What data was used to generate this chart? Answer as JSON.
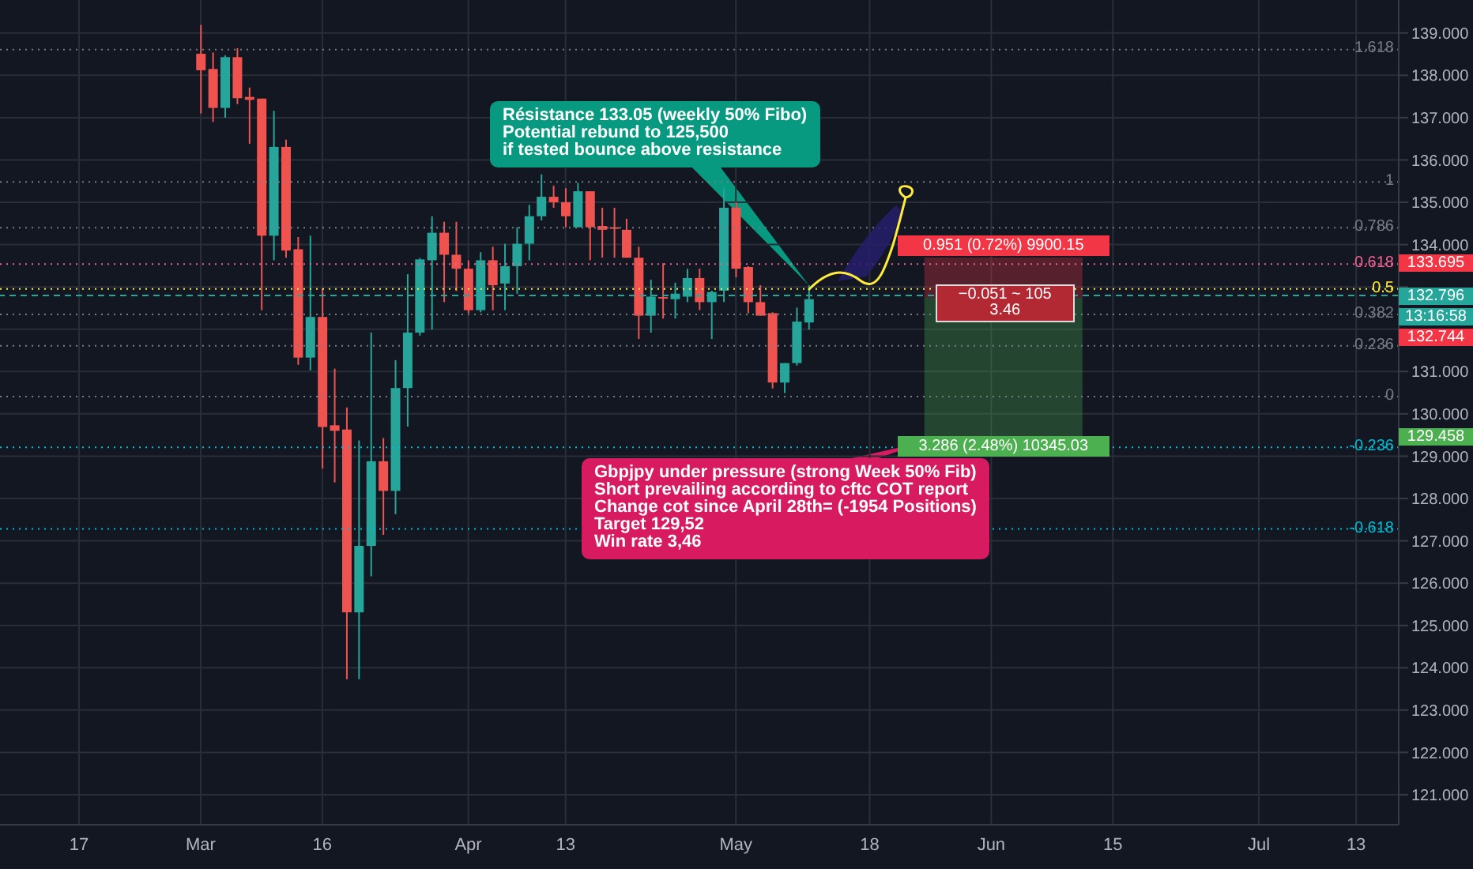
{
  "chart_data": {
    "type": "candlestick",
    "categories": [
      null,
      null,
      null,
      null,
      null,
      null,
      "17",
      null,
      null,
      null,
      null,
      null,
      null,
      null,
      null,
      null,
      "Mar",
      null,
      null,
      null,
      null,
      null,
      null,
      null,
      null,
      null,
      "16",
      null,
      null,
      null,
      null,
      null,
      null,
      null,
      null,
      null,
      null,
      null,
      "Apr",
      null,
      null,
      null,
      null,
      null,
      null,
      null,
      "13",
      null,
      null,
      null,
      null,
      null,
      null,
      null,
      null,
      null,
      null,
      null,
      null,
      null,
      "May",
      null,
      null,
      null,
      null,
      null,
      null,
      null,
      null,
      null,
      null,
      "18",
      null,
      null,
      null,
      null,
      null,
      null,
      null,
      null,
      null,
      "Jun",
      null,
      null,
      null,
      null,
      null,
      null,
      null,
      null,
      null,
      "15",
      null,
      null,
      null,
      null,
      null,
      null,
      null,
      null,
      null,
      null,
      null,
      "Jul",
      null,
      null,
      null,
      null,
      null,
      null,
      null,
      "13",
      null,
      null,
      null
    ],
    "ohlc": [
      null,
      null,
      null,
      null,
      null,
      null,
      null,
      null,
      null,
      null,
      null,
      null,
      null,
      null,
      null,
      null,
      [
        138.51,
        139.19,
        137.1,
        138.12
      ],
      [
        138.15,
        138.54,
        136.9,
        137.23
      ],
      [
        137.23,
        138.47,
        137.0,
        138.43
      ],
      [
        138.43,
        138.64,
        137.32,
        137.46
      ],
      [
        137.49,
        137.71,
        136.38,
        137.42
      ],
      [
        137.45,
        137.45,
        132.45,
        134.21
      ],
      [
        134.21,
        137.16,
        133.63,
        136.31
      ],
      [
        136.31,
        136.48,
        133.69,
        133.86
      ],
      [
        133.89,
        134.18,
        131.16,
        131.33
      ],
      [
        131.33,
        134.21,
        131.03,
        132.29
      ],
      [
        132.29,
        132.97,
        128.71,
        129.69
      ],
      [
        129.73,
        131.07,
        128.38,
        129.6
      ],
      [
        129.63,
        130.15,
        123.73,
        125.31
      ],
      [
        125.31,
        129.37,
        123.73,
        126.88
      ],
      [
        126.88,
        131.92,
        126.16,
        128.88
      ],
      [
        128.88,
        129.43,
        127.14,
        128.18
      ],
      [
        128.18,
        131.27,
        127.63,
        130.61
      ],
      [
        130.61,
        133.3,
        129.7,
        131.92
      ],
      [
        131.92,
        133.68,
        131.85,
        133.65
      ],
      [
        133.63,
        134.67,
        131.99,
        134.28
      ],
      [
        134.28,
        134.54,
        132.64,
        133.76
      ],
      [
        133.76,
        134.54,
        132.9,
        133.43
      ],
      [
        133.43,
        133.63,
        132.38,
        132.45
      ],
      [
        132.45,
        133.82,
        132.4,
        133.63
      ],
      [
        133.63,
        133.95,
        132.45,
        133.04
      ],
      [
        133.08,
        134.02,
        132.45,
        133.49
      ],
      [
        133.49,
        134.41,
        132.84,
        134.02
      ],
      [
        134.02,
        134.94,
        133.63,
        134.67
      ],
      [
        134.67,
        135.66,
        134.57,
        135.13
      ],
      [
        135.13,
        135.39,
        134.87,
        135.0
      ],
      [
        135.0,
        135.33,
        134.41,
        134.67
      ],
      [
        134.41,
        135.46,
        134.41,
        135.26
      ],
      [
        135.26,
        135.26,
        133.63,
        134.41
      ],
      [
        134.44,
        134.87,
        133.69,
        134.35
      ],
      [
        134.41,
        134.87,
        133.69,
        134.4
      ],
      [
        134.35,
        134.61,
        133.69,
        133.69
      ],
      [
        133.69,
        133.95,
        131.77,
        132.32
      ],
      [
        132.32,
        133.17,
        131.92,
        132.77
      ],
      [
        132.76,
        133.56,
        132.25,
        132.73
      ],
      [
        132.71,
        133.1,
        132.25,
        132.84
      ],
      [
        132.77,
        133.43,
        132.64,
        133.21
      ],
      [
        133.21,
        133.43,
        132.45,
        132.64
      ],
      [
        132.64,
        132.91,
        131.77,
        132.88
      ],
      [
        132.91,
        135.33,
        132.64,
        134.87
      ],
      [
        134.87,
        135.0,
        133.23,
        133.43
      ],
      [
        133.47,
        133.49,
        132.38,
        132.64
      ],
      [
        132.64,
        133.04,
        132.32,
        132.32
      ],
      [
        132.38,
        132.4,
        130.6,
        130.74
      ],
      [
        130.74,
        131.2,
        130.49,
        131.2
      ],
      [
        131.2,
        132.51,
        131.14,
        132.18
      ],
      [
        132.16,
        133.04,
        131.99,
        132.71
      ],
      null,
      null,
      null,
      null,
      null,
      null,
      null,
      null,
      null,
      null,
      null,
      null,
      null,
      null,
      null,
      null,
      null,
      null,
      null,
      null,
      null,
      null,
      null,
      null,
      null,
      null,
      null,
      null,
      null,
      null,
      null,
      null,
      null,
      null,
      null,
      null,
      null,
      null,
      null,
      null,
      null,
      null,
      null,
      null,
      null,
      null,
      null,
      null
    ],
    "ylim": [
      120.29,
      139.78
    ],
    "yticks": [
      {
        "value": 121,
        "label": "121.000"
      },
      {
        "value": 122,
        "label": "122.000"
      },
      {
        "value": 123,
        "label": "123.000"
      },
      {
        "value": 124,
        "label": "124.000"
      },
      {
        "value": 125,
        "label": "125.000"
      },
      {
        "value": 126,
        "label": "126.000"
      },
      {
        "value": 127,
        "label": "127.000"
      },
      {
        "value": 128,
        "label": "128.000"
      },
      {
        "value": 129,
        "label": "129.000"
      },
      {
        "value": 130,
        "label": "130.000"
      },
      {
        "value": 131,
        "label": "131.000"
      },
      {
        "value": 132,
        "label": null
      },
      {
        "value": 133,
        "label": null
      },
      {
        "value": 134,
        "label": "134.000"
      },
      {
        "value": 135,
        "label": "135.000"
      },
      {
        "value": 136,
        "label": "136.000"
      },
      {
        "value": 137,
        "label": "137.000"
      },
      {
        "value": 138,
        "label": "138.000"
      },
      {
        "value": 139,
        "label": "139.000"
      }
    ],
    "grid": true,
    "ref_lines": [
      {
        "axis": "y",
        "value": 138.61,
        "color": "#787b86",
        "line_style": "dotted"
      },
      {
        "axis": "y",
        "value": 135.48,
        "color": "#787b86",
        "line_style": "dotted"
      },
      {
        "axis": "y",
        "value": 134.4,
        "color": "#787b86",
        "line_style": "dotted"
      },
      {
        "axis": "y",
        "value": 133.54,
        "color": "#f06292",
        "line_style": "dotted"
      },
      {
        "axis": "y",
        "value": 132.95,
        "color": "#ffeb3b",
        "line_style": "dotted"
      },
      {
        "axis": "y",
        "value": 132.35,
        "color": "#787b86",
        "line_style": "dotted"
      },
      {
        "axis": "y",
        "value": 131.61,
        "color": "#787b86",
        "line_style": "dotted"
      },
      {
        "axis": "y",
        "value": 130.41,
        "color": "#787b86",
        "line_style": "dotted"
      },
      {
        "axis": "y",
        "value": 129.21,
        "color": "#00bcd4",
        "line_style": "dotted"
      },
      {
        "axis": "y",
        "value": 127.28,
        "color": "#00bcd4",
        "line_style": "dotted"
      },
      {
        "axis": "y",
        "value": 132.796,
        "label": "132.796",
        "color": "#26a69a",
        "line_style": "dashed"
      }
    ],
    "bands": [
      {
        "axis": "y",
        "from": 132.744,
        "to": 133.695,
        "label": "0.951 (0.72%) 9900.15",
        "color": "#f23645"
      },
      {
        "axis": "y",
        "from": 129.458,
        "to": 132.744,
        "label": "3.286 (2.48%) 10345.03",
        "color": "#4caf50"
      }
    ],
    "annotations": [
      "Résistance 133.05 (weekly 50% Fibo)\nPotential rebund to 125,500\nif tested bounce above resistance",
      "Gbpjpy under pressure (strong Week 50% Fib)\nShort prevailing according to cftc COT report\nChange cot since April 28th= (-1954 Positions)\nTarget 129,52\nWin rate 3,46",
      "−0.051 ~ 105\n3.46",
      "13:16:58",
      "133.695",
      "132.744",
      "129.458",
      {
        "text": "1.618",
        "y": 138.61
      },
      {
        "text": "1",
        "y": 135.48
      },
      {
        "text": "0.786",
        "y": 134.4
      },
      {
        "text": "0.618",
        "y": 133.54
      },
      {
        "text": "0.5",
        "y": 132.95
      },
      {
        "text": "0.382",
        "y": 132.35
      },
      {
        "text": "0.236",
        "y": 131.61
      },
      {
        "text": "0",
        "y": 130.41
      },
      {
        "text": "-0.236",
        "y": 129.21
      },
      {
        "text": "-0.618",
        "y": 127.28
      }
    ]
  }
}
